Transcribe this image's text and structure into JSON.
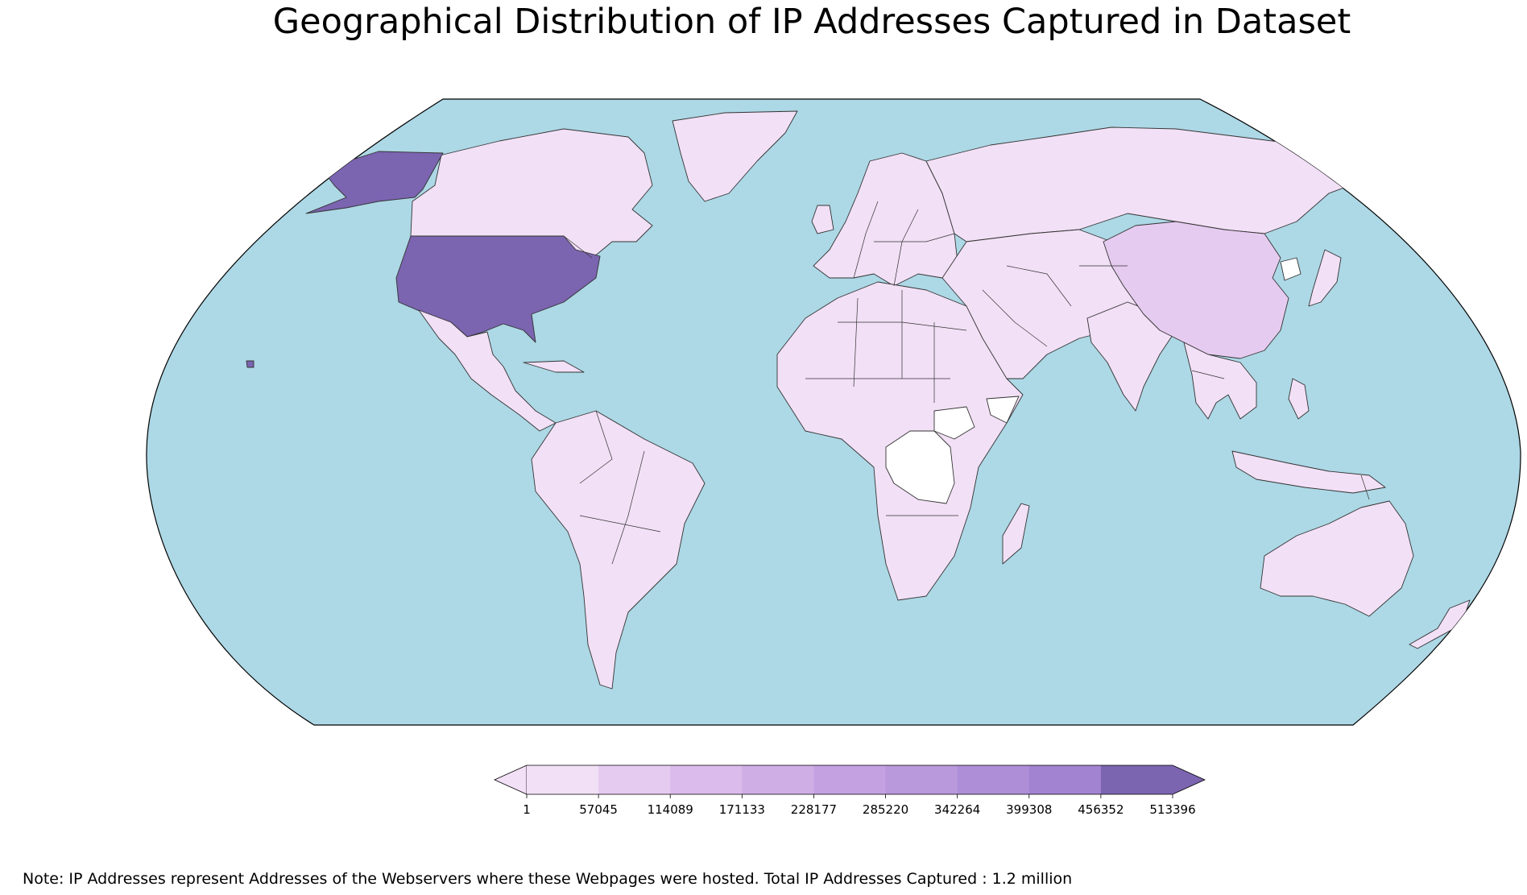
{
  "title": "Geographical Distribution of IP Addresses Captured in Dataset",
  "note": "Note: IP Addresses represent Addresses of the Webservers where these Webpages were hosted. Total IP Addresses Captured : 1.2 million",
  "colors": {
    "ocean": "#add8e6",
    "no_data": "#ffffff",
    "border": "#333333"
  },
  "colorbar": {
    "ticks": [
      "1",
      "57045",
      "114089",
      "171133",
      "228177",
      "285220",
      "342264",
      "399308",
      "456352",
      "513396"
    ],
    "bins": [
      "#f2e0f6",
      "#e6cbf0",
      "#dbbbeb",
      "#cfaee6",
      "#c4a1e1",
      "#b998dc",
      "#ae8ed7",
      "#a283d2",
      "#7b64b0"
    ],
    "under_color": "#f2e0f6",
    "over_color": "#7b64b0"
  },
  "regions": [
    {
      "name": "United States",
      "color": "#7b64b0"
    },
    {
      "name": "Alaska",
      "color": "#7b64b0"
    },
    {
      "name": "Hawaii",
      "color": "#7b64b0"
    },
    {
      "name": "China",
      "color": "#e6cbf0"
    },
    {
      "name": "Canada",
      "color": "#f2e0f6"
    },
    {
      "name": "Greenland",
      "color": "#f2e0f6"
    },
    {
      "name": "Mexico & Central America",
      "color": "#f2e0f6"
    },
    {
      "name": "South America",
      "color": "#f2e0f6"
    },
    {
      "name": "Europe",
      "color": "#f2e0f6"
    },
    {
      "name": "Russia",
      "color": "#f2e0f6"
    },
    {
      "name": "Africa",
      "color": "#f2e0f6"
    },
    {
      "name": "Middle East & Central Asia",
      "color": "#f2e0f6"
    },
    {
      "name": "India",
      "color": "#f2e0f6"
    },
    {
      "name": "Southeast Asia",
      "color": "#f2e0f6"
    },
    {
      "name": "Japan",
      "color": "#f2e0f6"
    },
    {
      "name": "Australia",
      "color": "#f2e0f6"
    },
    {
      "name": "Madagascar",
      "color": "#f2e0f6"
    },
    {
      "name": "DR Congo",
      "color": "#ffffff"
    },
    {
      "name": "South Sudan",
      "color": "#ffffff"
    },
    {
      "name": "Somalia",
      "color": "#ffffff"
    },
    {
      "name": "North Korea",
      "color": "#ffffff"
    }
  ]
}
